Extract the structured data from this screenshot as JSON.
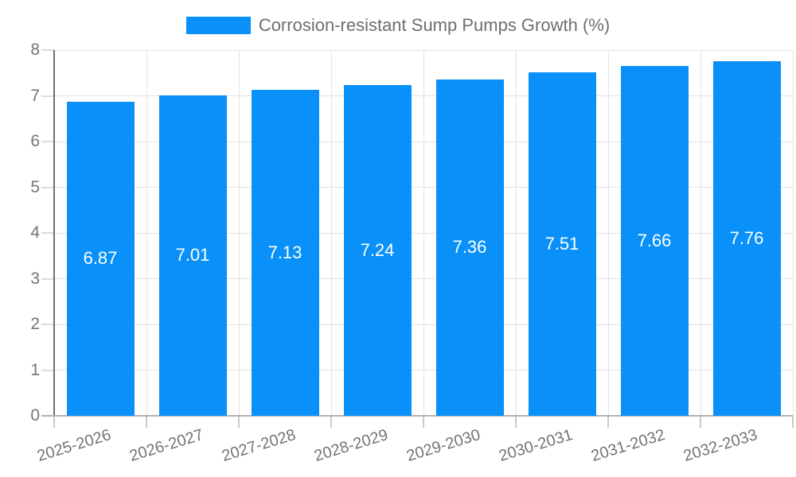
{
  "legend": {
    "label": "Corrosion-resistant Sump Pumps Growth (%)"
  },
  "chart_data": {
    "type": "bar",
    "title": "Corrosion-resistant Sump Pumps Growth (%)",
    "categories": [
      "2025-2026",
      "2026-2027",
      "2027-2028",
      "2028-2029",
      "2029-2030",
      "2030-2031",
      "2031-2032",
      "2032-2033"
    ],
    "values": [
      6.87,
      7.01,
      7.13,
      7.24,
      7.36,
      7.51,
      7.66,
      7.76
    ],
    "value_labels": [
      "6.87",
      "7.01",
      "7.13",
      "7.24",
      "7.36",
      "7.51",
      "7.66",
      "7.76"
    ],
    "xlabel": "",
    "ylabel": "",
    "ylim": [
      0,
      8
    ],
    "yticks": [
      0,
      1,
      2,
      3,
      4,
      5,
      6,
      7,
      8
    ],
    "grid": true,
    "legend_position": "top",
    "x_label_rotation_deg": -17,
    "colors": {
      "bar": "#0990f9",
      "bar_label": "#ffffff",
      "axis_text": "#757575",
      "title": "#6e6e6e",
      "grid": "#e2e2e2",
      "axis_line": "#6e6e6e",
      "baseline": "#b3b3b3",
      "y_tick": "#dcdcdc",
      "x_tick": "#c9c9c9"
    }
  }
}
